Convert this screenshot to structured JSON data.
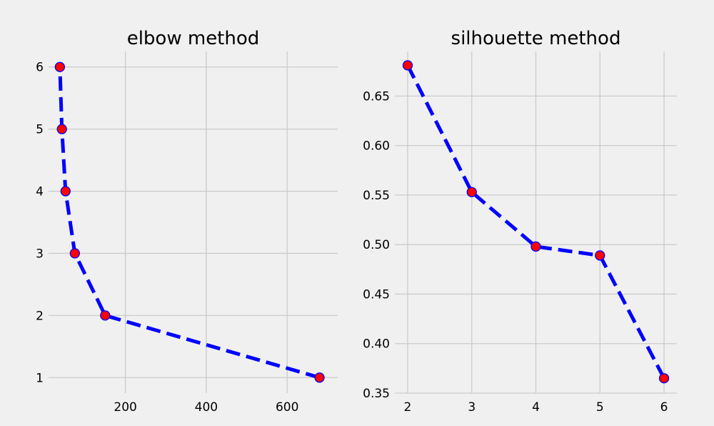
{
  "chart_data": [
    {
      "type": "line",
      "title": "elbow method",
      "xlabel": "",
      "ylabel": "",
      "x": [
        680,
        150,
        75,
        52,
        43,
        38
      ],
      "y": [
        1,
        2,
        3,
        4,
        5,
        6
      ],
      "xlim": [
        10,
        725
      ],
      "ylim": [
        0.75,
        6.25
      ],
      "xticks": [
        200,
        400,
        600
      ],
      "yticks": [
        1,
        2,
        3,
        4,
        5,
        6
      ],
      "grid": true,
      "line_color": "#0000ff",
      "line_style": "dashed",
      "marker_face": "#ff0000",
      "marker_edge": "#0000ff"
    },
    {
      "type": "line",
      "title": "silhouette method",
      "xlabel": "",
      "ylabel": "",
      "x": [
        2,
        3,
        4,
        5,
        6
      ],
      "y": [
        0.681,
        0.553,
        0.498,
        0.489,
        0.365
      ],
      "xlim": [
        1.8,
        6.2
      ],
      "ylim": [
        0.35,
        0.695
      ],
      "xticks": [
        2,
        3,
        4,
        5,
        6
      ],
      "yticks": [
        0.35,
        0.4,
        0.45,
        0.5,
        0.55,
        0.6,
        0.65
      ],
      "ytick_labels": [
        "0.35",
        "0.40",
        "0.45",
        "0.50",
        "0.55",
        "0.60",
        "0.65"
      ],
      "grid": true,
      "line_color": "#0000ff",
      "line_style": "dashed",
      "marker_face": "#ff0000",
      "marker_edge": "#0000ff"
    }
  ]
}
